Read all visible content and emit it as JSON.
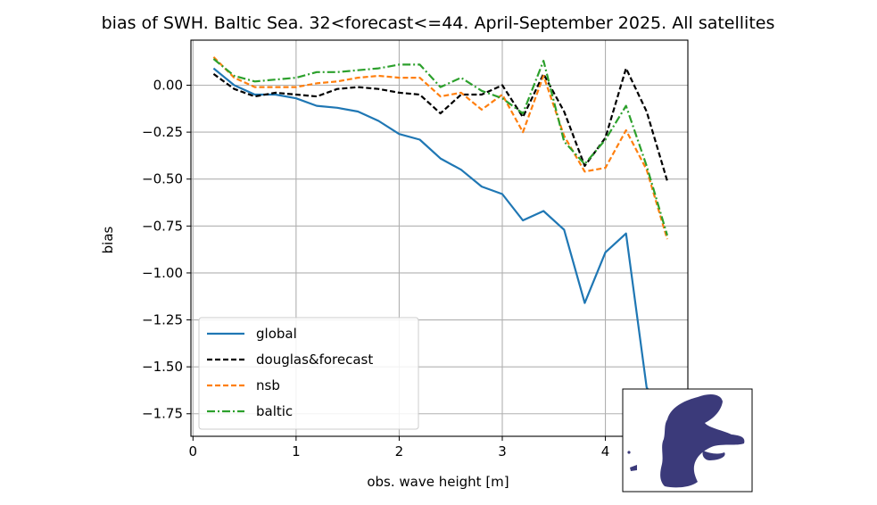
{
  "chart_data": {
    "type": "line",
    "title": "bias of SWH. Baltic Sea. 32<forecast<=44. April-September 2025. All satellites",
    "xlabel": "obs. wave height [m]",
    "ylabel": "bias",
    "xlim": [
      -0.02,
      4.8
    ],
    "ylim": [
      -1.87,
      0.24
    ],
    "xticks": [
      0,
      1,
      2,
      3,
      4
    ],
    "yticks": [
      0.0,
      -0.25,
      -0.5,
      -0.75,
      -1.0,
      -1.25,
      -1.5,
      -1.75
    ],
    "xtick_labels": [
      "0",
      "1",
      "2",
      "3",
      "4"
    ],
    "ytick_labels": [
      "0.00",
      "−0.25",
      "−0.50",
      "−0.75",
      "−1.00",
      "−1.25",
      "−1.50",
      "−1.75"
    ],
    "grid": true,
    "legend_position": "lower-left",
    "x": [
      0.2,
      0.4,
      0.6,
      0.8,
      1.0,
      1.2,
      1.4,
      1.6,
      1.8,
      2.0,
      2.2,
      2.4,
      2.6,
      2.8,
      3.0,
      3.2,
      3.4,
      3.6,
      3.8,
      4.0,
      4.2,
      4.4,
      4.6
    ],
    "series": [
      {
        "name": "global",
        "color": "#1f77b4",
        "style": "solid",
        "values": [
          0.09,
          0.0,
          -0.05,
          -0.05,
          -0.07,
          -0.11,
          -0.12,
          -0.14,
          -0.19,
          -0.26,
          -0.29,
          -0.39,
          -0.45,
          -0.54,
          -0.58,
          -0.72,
          -0.67,
          -0.77,
          -1.16,
          -0.89,
          -0.79,
          -1.61,
          -1.77
        ]
      },
      {
        "name": "douglas&forecast",
        "color": "#000000",
        "style": "dashed",
        "values": [
          0.06,
          -0.02,
          -0.06,
          -0.04,
          -0.05,
          -0.06,
          -0.02,
          -0.01,
          -0.02,
          -0.04,
          -0.05,
          -0.15,
          -0.05,
          -0.05,
          0.0,
          -0.17,
          0.06,
          -0.14,
          -0.43,
          -0.28,
          0.09,
          -0.14,
          -0.51
        ]
      },
      {
        "name": "nsb",
        "color": "#ff7f0e",
        "style": "dashed",
        "values": [
          0.15,
          0.04,
          -0.01,
          -0.01,
          -0.01,
          0.01,
          0.02,
          0.04,
          0.05,
          0.04,
          0.04,
          -0.06,
          -0.04,
          -0.13,
          -0.05,
          -0.25,
          0.05,
          -0.27,
          -0.46,
          -0.44,
          -0.24,
          -0.45,
          -0.82
        ]
      },
      {
        "name": "baltic",
        "color": "#2ca02c",
        "style": "dashdot",
        "values": [
          0.14,
          0.05,
          0.02,
          0.03,
          0.04,
          0.07,
          0.07,
          0.08,
          0.09,
          0.11,
          0.11,
          -0.01,
          0.04,
          -0.03,
          -0.07,
          -0.15,
          0.13,
          -0.3,
          -0.42,
          -0.29,
          -0.11,
          -0.43,
          -0.8
        ]
      }
    ]
  },
  "inset": {
    "description_icon": "baltic-sea-map-icon",
    "color": "#3b3a7a"
  }
}
